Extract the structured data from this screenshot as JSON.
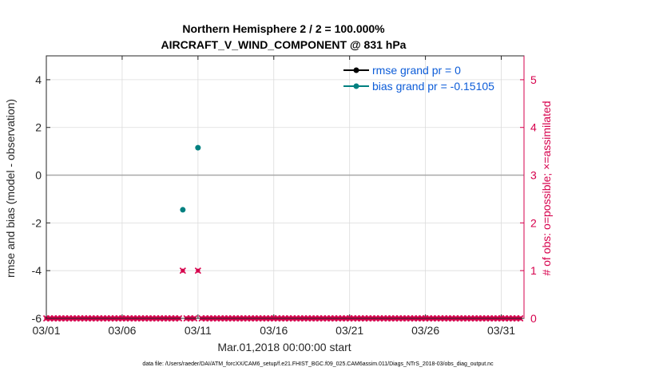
{
  "chart_data": {
    "type": "scatter",
    "title_line1": "Northern Hemisphere 2 / 2 = 100.000%",
    "title_line2": "AIRCRAFT_V_WIND_COMPONENT @ 831 hPa",
    "xlabel": "Mar.01,2018 00:00:00 start",
    "ylabel_left": "rmse and bias (model - observation)",
    "ylabel_right": "# of obs: o=possible; ×=assimilated",
    "footer": "data file: /Users/raeder/DAI/ATM_forcXX/CAM6_setup/f.e21.FHIST_BGC.f09_025.CAM6assim.011/Diags_NTrS_2018-03/obs_diag_output.nc",
    "xlim": [
      0,
      31.5
    ],
    "ylim_left": [
      -6,
      5
    ],
    "ylim_right": [
      0,
      5.5
    ],
    "x_ticks": [
      0,
      5,
      10,
      15,
      20,
      25,
      30
    ],
    "x_tick_labels": [
      "03/01",
      "03/06",
      "03/11",
      "03/16",
      "03/21",
      "03/26",
      "03/31"
    ],
    "y_left_ticks": [
      -6,
      -4,
      -2,
      0,
      2,
      4
    ],
    "y_left_tick_labels": [
      "-6",
      "-4",
      "-2",
      "0",
      "2",
      "4"
    ],
    "y_right_ticks": [
      0,
      1,
      2,
      3,
      4,
      5
    ],
    "y_right_tick_labels": [
      "0",
      "1",
      "2",
      "3",
      "4",
      "5"
    ],
    "series": [
      {
        "name": "rmse grand pr = 0",
        "color": "#000000",
        "axis": "left",
        "x": [],
        "y": []
      },
      {
        "name": "bias grand pr = -0.15105",
        "color": "#008080",
        "axis": "left",
        "x": [
          9,
          10
        ],
        "y": [
          -1.45,
          1.15
        ]
      }
    ],
    "obs_counts": {
      "color": "#d6004c",
      "axis": "right",
      "x_start": 0,
      "x_step": 0.25,
      "n": 126,
      "nonzero": [
        {
          "x": 9,
          "count": 1
        },
        {
          "x": 10,
          "count": 1
        }
      ]
    }
  }
}
